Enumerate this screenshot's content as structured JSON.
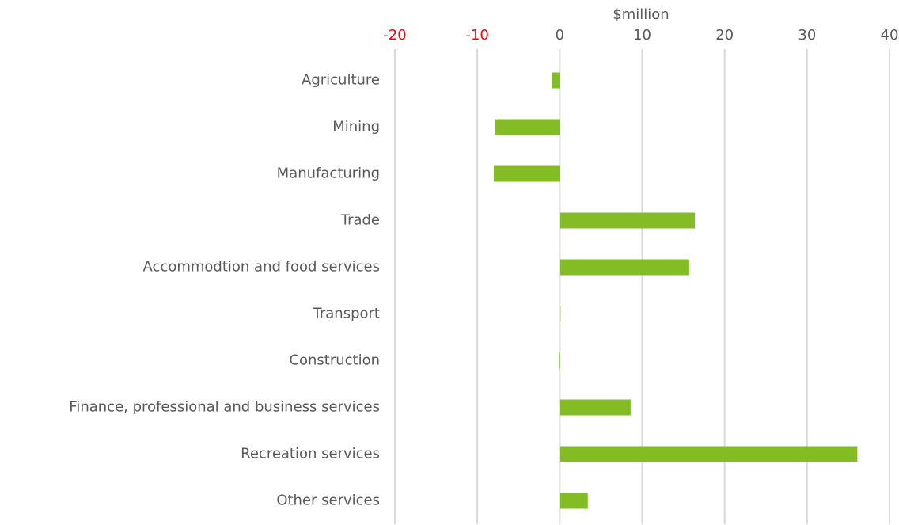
{
  "chart_data": {
    "type": "barh",
    "xlabel": "$million",
    "categories": [
      "Agriculture",
      "Mining",
      "Manufacturing",
      "Trade",
      "Accommodtion and food services",
      "Transport",
      "Construction ",
      "Finance, professional and business services",
      "Recreation services",
      "Other services "
    ],
    "values": [
      -0.9,
      -7.9,
      -8.0,
      16.4,
      15.7,
      0.05,
      -0.1,
      8.6,
      36.1,
      3.4
    ],
    "color": "#84bc26",
    "xlim": [
      -20,
      40
    ],
    "xticks": [
      -20,
      -10,
      0,
      10,
      20,
      30,
      40
    ],
    "grid": true,
    "tick_color": "#595959",
    "negative_tick_color": "#ff0000"
  }
}
